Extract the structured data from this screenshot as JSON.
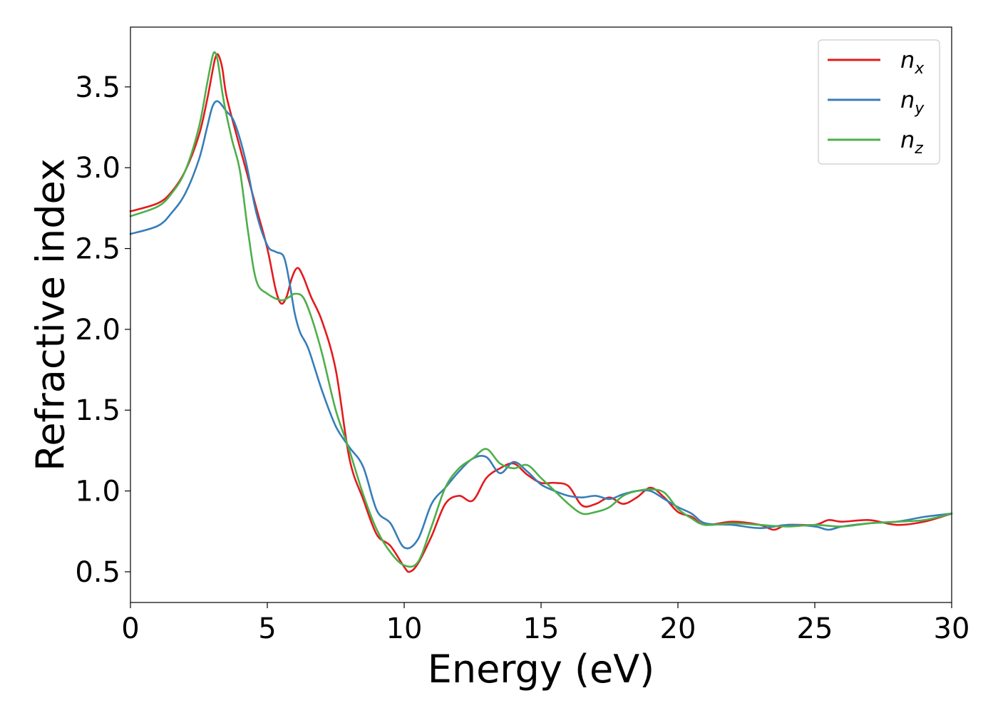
{
  "chart_data": {
    "type": "line",
    "title": "",
    "xlabel": "Energy (eV)",
    "ylabel": "Refractive index",
    "xlim": [
      0,
      30
    ],
    "ylim": [
      0.31,
      3.87
    ],
    "xticks": [
      0,
      5,
      10,
      15,
      20,
      25,
      30
    ],
    "yticks": [
      0.5,
      1.0,
      1.5,
      2.0,
      2.5,
      3.0,
      3.5
    ],
    "xtick_labels": [
      "0",
      "5",
      "10",
      "15",
      "20",
      "25",
      "30"
    ],
    "ytick_labels": [
      "0.5",
      "1.0",
      "1.5",
      "2.0",
      "2.5",
      "3.0",
      "3.5"
    ],
    "grid": false,
    "legend_position": "top-right",
    "series": [
      {
        "name": "n",
        "subscript": "x",
        "color": "#e41a1c",
        "x": [
          0,
          1,
          1.5,
          2,
          2.5,
          2.8,
          3.0,
          3.1,
          3.2,
          3.35,
          3.5,
          3.8,
          4.2,
          4.6,
          5.0,
          5.3,
          5.5,
          5.7,
          5.9,
          6.1,
          6.3,
          6.6,
          7.0,
          7.5,
          8.0,
          8.5,
          9.0,
          9.5,
          10.0,
          10.2,
          10.5,
          11.0,
          11.5,
          12.0,
          12.5,
          13.0,
          13.5,
          14.0,
          14.5,
          15.0,
          15.5,
          16.0,
          16.5,
          17.0,
          17.5,
          18.0,
          18.5,
          19.0,
          19.5,
          20.0,
          20.5,
          21.0,
          22.0,
          23.0,
          23.5,
          24.0,
          25.0,
          25.5,
          26.0,
          27.0,
          28.0,
          29.0,
          30.0
        ],
        "y": [
          2.73,
          2.78,
          2.85,
          2.98,
          3.2,
          3.42,
          3.6,
          3.68,
          3.7,
          3.62,
          3.45,
          3.25,
          3.0,
          2.75,
          2.5,
          2.25,
          2.16,
          2.2,
          2.32,
          2.38,
          2.33,
          2.2,
          2.05,
          1.75,
          1.2,
          0.95,
          0.73,
          0.66,
          0.53,
          0.5,
          0.55,
          0.72,
          0.92,
          0.97,
          0.94,
          1.08,
          1.14,
          1.17,
          1.1,
          1.05,
          1.05,
          1.03,
          0.91,
          0.92,
          0.96,
          0.92,
          0.96,
          1.02,
          0.96,
          0.87,
          0.84,
          0.79,
          0.81,
          0.79,
          0.76,
          0.79,
          0.79,
          0.82,
          0.81,
          0.82,
          0.79,
          0.81,
          0.86
        ]
      },
      {
        "name": "n",
        "subscript": "y",
        "color": "#377eb8",
        "x": [
          0,
          1,
          1.5,
          2,
          2.5,
          2.8,
          3.0,
          3.2,
          3.5,
          3.8,
          4.2,
          4.6,
          5.0,
          5.3,
          5.6,
          5.8,
          6.0,
          6.2,
          6.5,
          7.0,
          7.5,
          8.0,
          8.5,
          9.0,
          9.5,
          10.0,
          10.5,
          11.0,
          11.5,
          12.0,
          12.5,
          13.0,
          13.5,
          14.0,
          14.5,
          15.0,
          15.5,
          16.0,
          16.5,
          17.0,
          17.5,
          18.0,
          18.5,
          19.0,
          19.5,
          20.0,
          20.5,
          21.0,
          22.0,
          23.0,
          24.0,
          25.0,
          25.5,
          26.0,
          27.0,
          28.0,
          29.0,
          30.0
        ],
        "y": [
          2.59,
          2.64,
          2.72,
          2.84,
          3.05,
          3.25,
          3.38,
          3.41,
          3.35,
          3.28,
          3.05,
          2.72,
          2.52,
          2.48,
          2.45,
          2.3,
          2.1,
          1.98,
          1.88,
          1.62,
          1.4,
          1.27,
          1.15,
          0.88,
          0.8,
          0.65,
          0.7,
          0.92,
          1.02,
          1.12,
          1.2,
          1.21,
          1.11,
          1.18,
          1.12,
          1.04,
          1.0,
          0.97,
          0.96,
          0.97,
          0.95,
          0.98,
          1.0,
          1.0,
          0.95,
          0.9,
          0.86,
          0.8,
          0.79,
          0.77,
          0.79,
          0.78,
          0.76,
          0.78,
          0.8,
          0.81,
          0.84,
          0.86
        ]
      },
      {
        "name": "n",
        "subscript": "z",
        "color": "#4daf4a",
        "x": [
          0,
          1,
          1.5,
          2,
          2.5,
          2.8,
          3.0,
          3.1,
          3.2,
          3.4,
          3.7,
          4.0,
          4.3,
          4.6,
          5.0,
          5.5,
          5.8,
          6.0,
          6.3,
          6.6,
          7.0,
          7.5,
          8.0,
          8.5,
          9.0,
          9.5,
          10.0,
          10.5,
          11.0,
          11.5,
          12.0,
          12.5,
          13.0,
          13.5,
          14.0,
          14.5,
          15.0,
          15.5,
          16.0,
          16.5,
          17.0,
          17.5,
          18.0,
          18.5,
          19.0,
          19.5,
          20.0,
          20.5,
          21.0,
          22.0,
          23.0,
          24.0,
          25.0,
          26.0,
          27.0,
          28.0,
          29.0,
          30.0
        ],
        "y": [
          2.7,
          2.76,
          2.84,
          2.98,
          3.25,
          3.52,
          3.69,
          3.71,
          3.65,
          3.42,
          3.18,
          2.98,
          2.6,
          2.3,
          2.22,
          2.18,
          2.2,
          2.22,
          2.2,
          2.08,
          1.85,
          1.5,
          1.25,
          0.98,
          0.76,
          0.62,
          0.54,
          0.56,
          0.78,
          1.02,
          1.14,
          1.2,
          1.26,
          1.17,
          1.14,
          1.16,
          1.08,
          1.0,
          0.92,
          0.86,
          0.87,
          0.9,
          0.97,
          1.0,
          1.01,
          0.99,
          0.89,
          0.83,
          0.79,
          0.8,
          0.79,
          0.78,
          0.79,
          0.78,
          0.8,
          0.81,
          0.82,
          0.86
        ]
      }
    ]
  }
}
